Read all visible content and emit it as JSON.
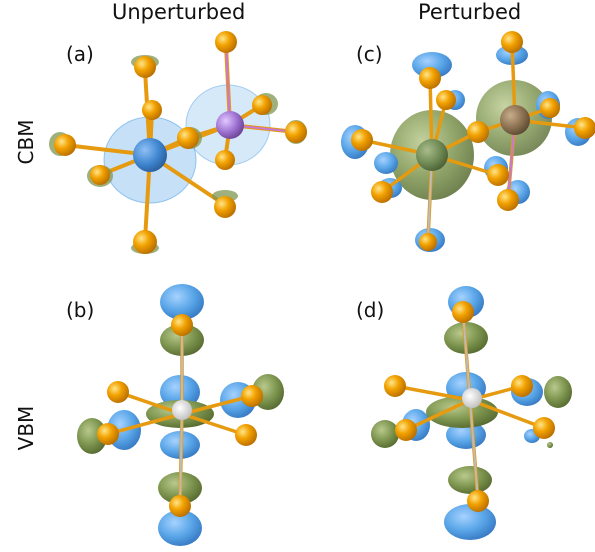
{
  "column_titles": [
    "Unperturbed",
    "Perturbed"
  ],
  "row_labels": [
    "CBM",
    "VBM"
  ],
  "panel_labels": [
    "(a)",
    "(b)",
    "(c)",
    "(d)"
  ],
  "colors": {
    "orbital_blue": "#5aa6e8",
    "orbital_green": "#7e9650",
    "ligand_gold": "#f2a200",
    "bond": "#e69a10",
    "atom_blue": "#4a8fd6",
    "atom_purple": "#9c6fd0",
    "atom_green": "#6f8a55",
    "atom_brown": "#8a7050",
    "center_white": "#e8e8e8"
  }
}
